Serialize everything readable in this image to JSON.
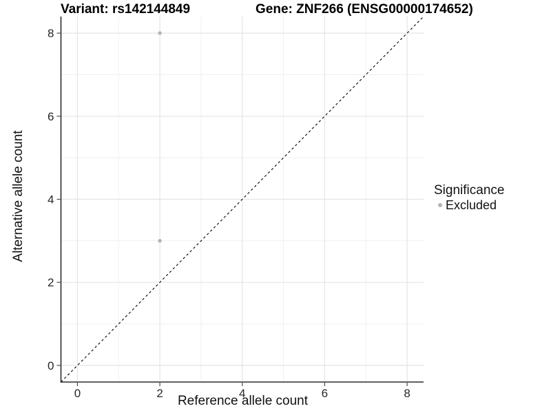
{
  "titles": {
    "variant": "Variant: rs142144849",
    "gene": "Gene: ZNF266 (ENSG00000174652)"
  },
  "chart_data": {
    "type": "scatter",
    "xlabel": "Reference allele count",
    "ylabel": "Alternative allele count",
    "xlim": [
      -0.4,
      8.4
    ],
    "ylim": [
      -0.4,
      8.4
    ],
    "xticks": [
      0,
      2,
      4,
      6,
      8
    ],
    "yticks": [
      0,
      2,
      4,
      6,
      8
    ],
    "minor_xticks": [
      1,
      3,
      5,
      7
    ],
    "minor_yticks": [
      1,
      3,
      5,
      7
    ],
    "grid": true,
    "points": [
      {
        "x": 2,
        "y": 8,
        "series": "Excluded"
      },
      {
        "x": 2,
        "y": 3,
        "series": "Excluded"
      }
    ],
    "reference_line": {
      "kind": "identity",
      "style": "dashed",
      "from": [
        -0.4,
        -0.4
      ],
      "to": [
        8.4,
        8.4
      ]
    },
    "legend": {
      "title": "Significance",
      "position": "right",
      "items": [
        {
          "label": "Excluded",
          "color": "#b4b4b4"
        }
      ]
    },
    "colors": {
      "point": "#b4b4b4",
      "grid_major": "#e4e4e4",
      "grid_minor": "#eeeeee",
      "axis_line": "#2b2b2b",
      "tick_mark": "#4a4a4a",
      "dashed_line": "#000000",
      "background": "#ffffff"
    }
  }
}
